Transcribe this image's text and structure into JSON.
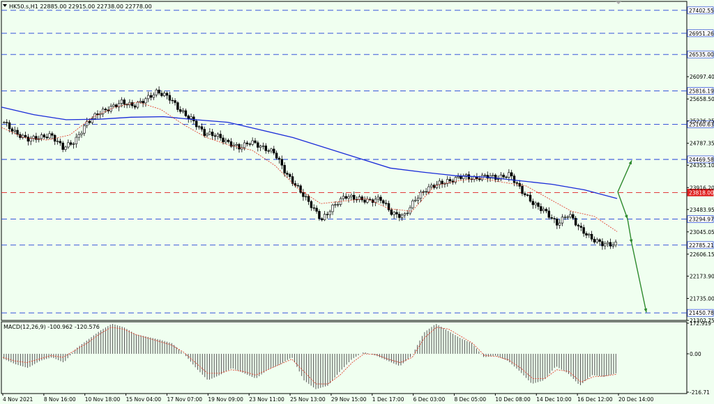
{
  "header": {
    "symbol_line": "HK50.s,H1  22885.00 22915.00 22738.00 22778.00",
    "macd_label": "MACD(12,26,9) -100.962 -120.576"
  },
  "colors": {
    "background": "#f0fff0",
    "level_line": "#1e3fd6",
    "current_level_line": "#e02020",
    "ma_slow": "#1a2bd8",
    "ma_fast": "#e0301e",
    "candles": "#000000",
    "arrows": "#2d8a2d"
  },
  "chart_data": [
    {
      "type": "line",
      "title": "",
      "xlabel": "",
      "ylabel": "",
      "ylim": [
        21302.75,
        27551.0
      ],
      "x_tick_labels": [
        "4 Nov 2021",
        "8 Nov 16:00",
        "10 Nov 18:00",
        "15 Nov 04:00",
        "17 Nov 07:00",
        "19 Nov 09:00",
        "23 Nov 11:00",
        "25 Nov 13:00",
        "29 Nov 15:00",
        "1 Dec 17:00",
        "6 Dec 03:00",
        "8 Dec 05:00",
        "10 Dec 08:00",
        "14 Dec 10:00",
        "16 Dec 12:00",
        "20 Dec 14:00"
      ],
      "y_tick_labels": [
        "26097.40",
        "25658.50",
        "25226.25",
        "24787.35",
        "24355.10",
        "23916.20",
        "23483.95",
        "23045.05",
        "22606.15",
        "22173.90",
        "21735.00",
        "21302.75"
      ],
      "levels": [
        {
          "value": 27402.55,
          "label": "27402.55",
          "kind": "resistance"
        },
        {
          "value": 26951.26,
          "label": "26951.26",
          "kind": "resistance"
        },
        {
          "value": 26535.0,
          "label": "26535.00",
          "kind": "resistance"
        },
        {
          "value": 25816.19,
          "label": "25816.19",
          "kind": "resistance"
        },
        {
          "value": 25160.63,
          "label": "25160.63",
          "kind": "resistance"
        },
        {
          "value": 24469.58,
          "label": "24469.58",
          "kind": "resistance"
        },
        {
          "value": 23818.0,
          "label": "23818.00",
          "kind": "current"
        },
        {
          "value": 23294.97,
          "label": "23294.97",
          "kind": "support"
        },
        {
          "value": 22785.21,
          "label": "22785.21",
          "kind": "support"
        },
        {
          "value": 21450.78,
          "label": "21450.78",
          "kind": "support"
        }
      ],
      "close_path": [
        25200,
        24980,
        24870,
        24900,
        24950,
        24700,
        24820,
        25180,
        25380,
        25480,
        25600,
        25520,
        25650,
        25800,
        25700,
        25420,
        25250,
        24980,
        24950,
        24800,
        24700,
        24820,
        24700,
        24600,
        24180,
        23900,
        23600,
        23280,
        23550,
        23750,
        23700,
        23650,
        23700,
        23400,
        23350,
        23700,
        23900,
        24000,
        24050,
        24150,
        24080,
        24150,
        24100,
        24180,
        23850,
        23600,
        23450,
        23200,
        23400,
        23100,
        22900,
        22800,
        22800
      ],
      "ma_slow_path": [
        25500,
        25350,
        25250,
        25260,
        25300,
        25310,
        25250,
        25200,
        25050,
        24900,
        24700,
        24500,
        24300,
        24220,
        24150,
        24120,
        24050,
        23980,
        23870,
        23700
      ],
      "ma_fast_path": [
        25100,
        24900,
        24850,
        24950,
        25300,
        25500,
        25600,
        25450,
        25150,
        24900,
        24750,
        24650,
        24350,
        23900,
        23600,
        23650,
        23700,
        23500,
        23450,
        23950,
        24050,
        24100,
        24020,
        23950,
        23700,
        23450,
        23350,
        23050
      ],
      "annotations": [
        {
          "kind": "arrow",
          "from": 23830,
          "to": 24450,
          "scenario": "bullish"
        },
        {
          "kind": "arrow",
          "from": 23830,
          "to": 23300,
          "scenario": "bearish leg"
        },
        {
          "kind": "arrow",
          "from": 23300,
          "to": 22820,
          "scenario": "bearish leg"
        },
        {
          "kind": "arrow",
          "from": 22820,
          "to": 21460,
          "scenario": "bearish leg"
        }
      ]
    },
    {
      "type": "bar",
      "title": "MACD(12,26,9) -100.962 -120.576",
      "ylim": [
        -216.71,
        172.919
      ],
      "y_tick_labels": [
        "172.919",
        "0.00",
        "-216.71"
      ],
      "histogram_path": [
        -30,
        -60,
        -80,
        -40,
        -20,
        -50,
        30,
        80,
        130,
        170,
        150,
        110,
        95,
        80,
        60,
        0,
        -80,
        -150,
        -120,
        -80,
        -110,
        -140,
        -90,
        -60,
        -20,
        -150,
        -200,
        -180,
        -100,
        -30,
        10,
        -10,
        -40,
        -70,
        -10,
        120,
        170,
        130,
        90,
        60,
        -20,
        -10,
        -40,
        -100,
        -170,
        -150,
        -70,
        -110,
        -180,
        -120,
        -130,
        -110
      ],
      "signal_path": [
        -20,
        -40,
        -50,
        -30,
        -10,
        -20,
        20,
        60,
        110,
        150,
        140,
        110,
        90,
        70,
        50,
        10,
        -50,
        -110,
        -110,
        -90,
        -100,
        -120,
        -90,
        -60,
        -30,
        -100,
        -170,
        -170,
        -120,
        -50,
        0,
        -5,
        -30,
        -50,
        -20,
        90,
        150,
        140,
        100,
        60,
        -10,
        -15,
        -35,
        -80,
        -140,
        -140,
        -90,
        -100,
        -160,
        -130,
        -125,
        -115
      ]
    }
  ]
}
